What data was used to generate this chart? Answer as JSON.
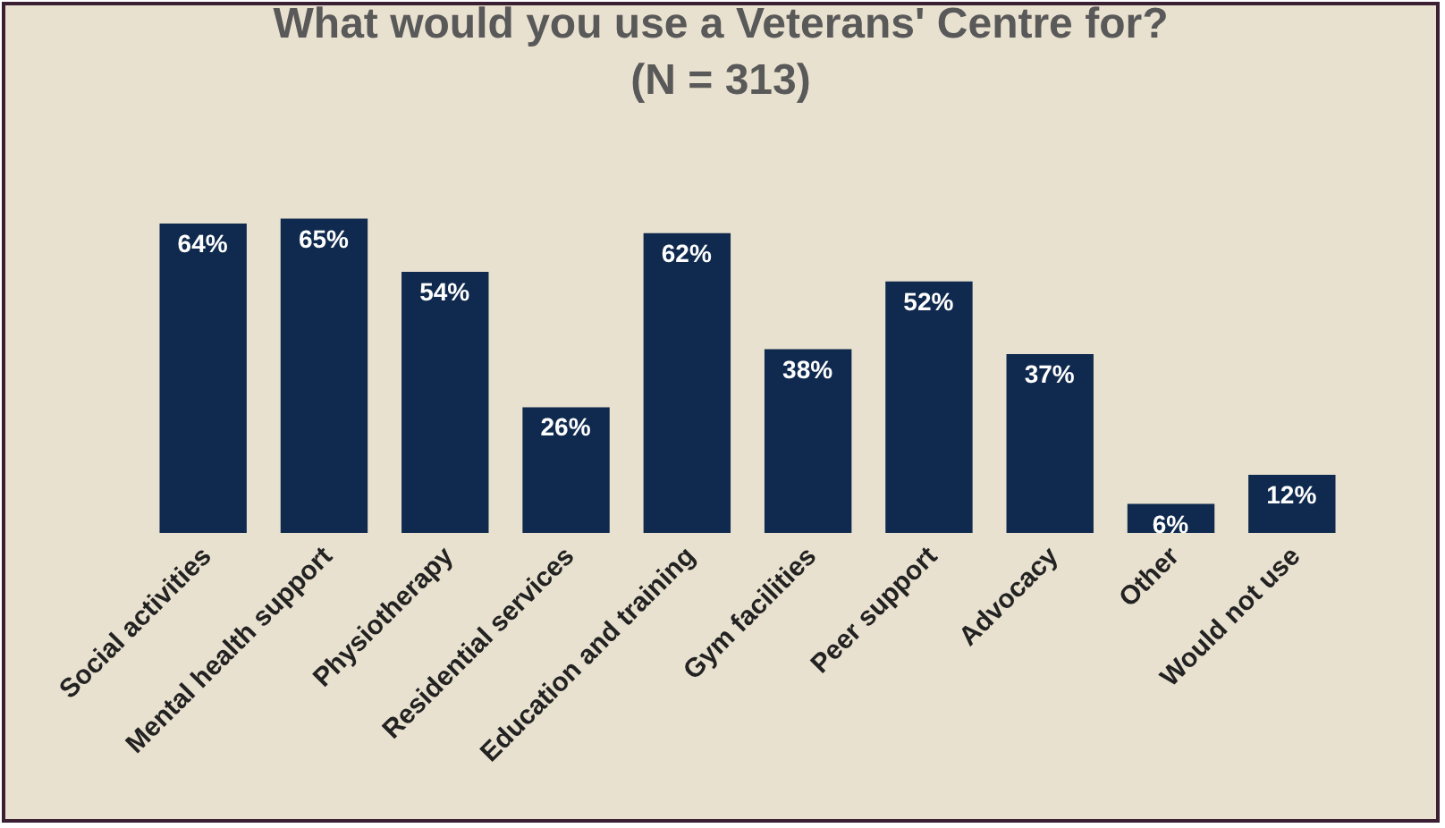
{
  "chart_data": {
    "type": "bar",
    "title": "What would you use a Veterans' Centre for?\n(N = 313)",
    "categories": [
      "Social activities",
      "Mental health support",
      "Physiotherapy",
      "Residential services",
      "Education and training",
      "Gym facilities",
      "Peer support",
      "Advocacy",
      "Other",
      "Would not use"
    ],
    "values": [
      64,
      65,
      54,
      26,
      62,
      38,
      52,
      37,
      6,
      12
    ],
    "value_labels": [
      "64%",
      "65%",
      "54%",
      "26%",
      "62%",
      "38%",
      "52%",
      "37%",
      "6%",
      "12%"
    ],
    "color": "#0f2a4e"
  }
}
